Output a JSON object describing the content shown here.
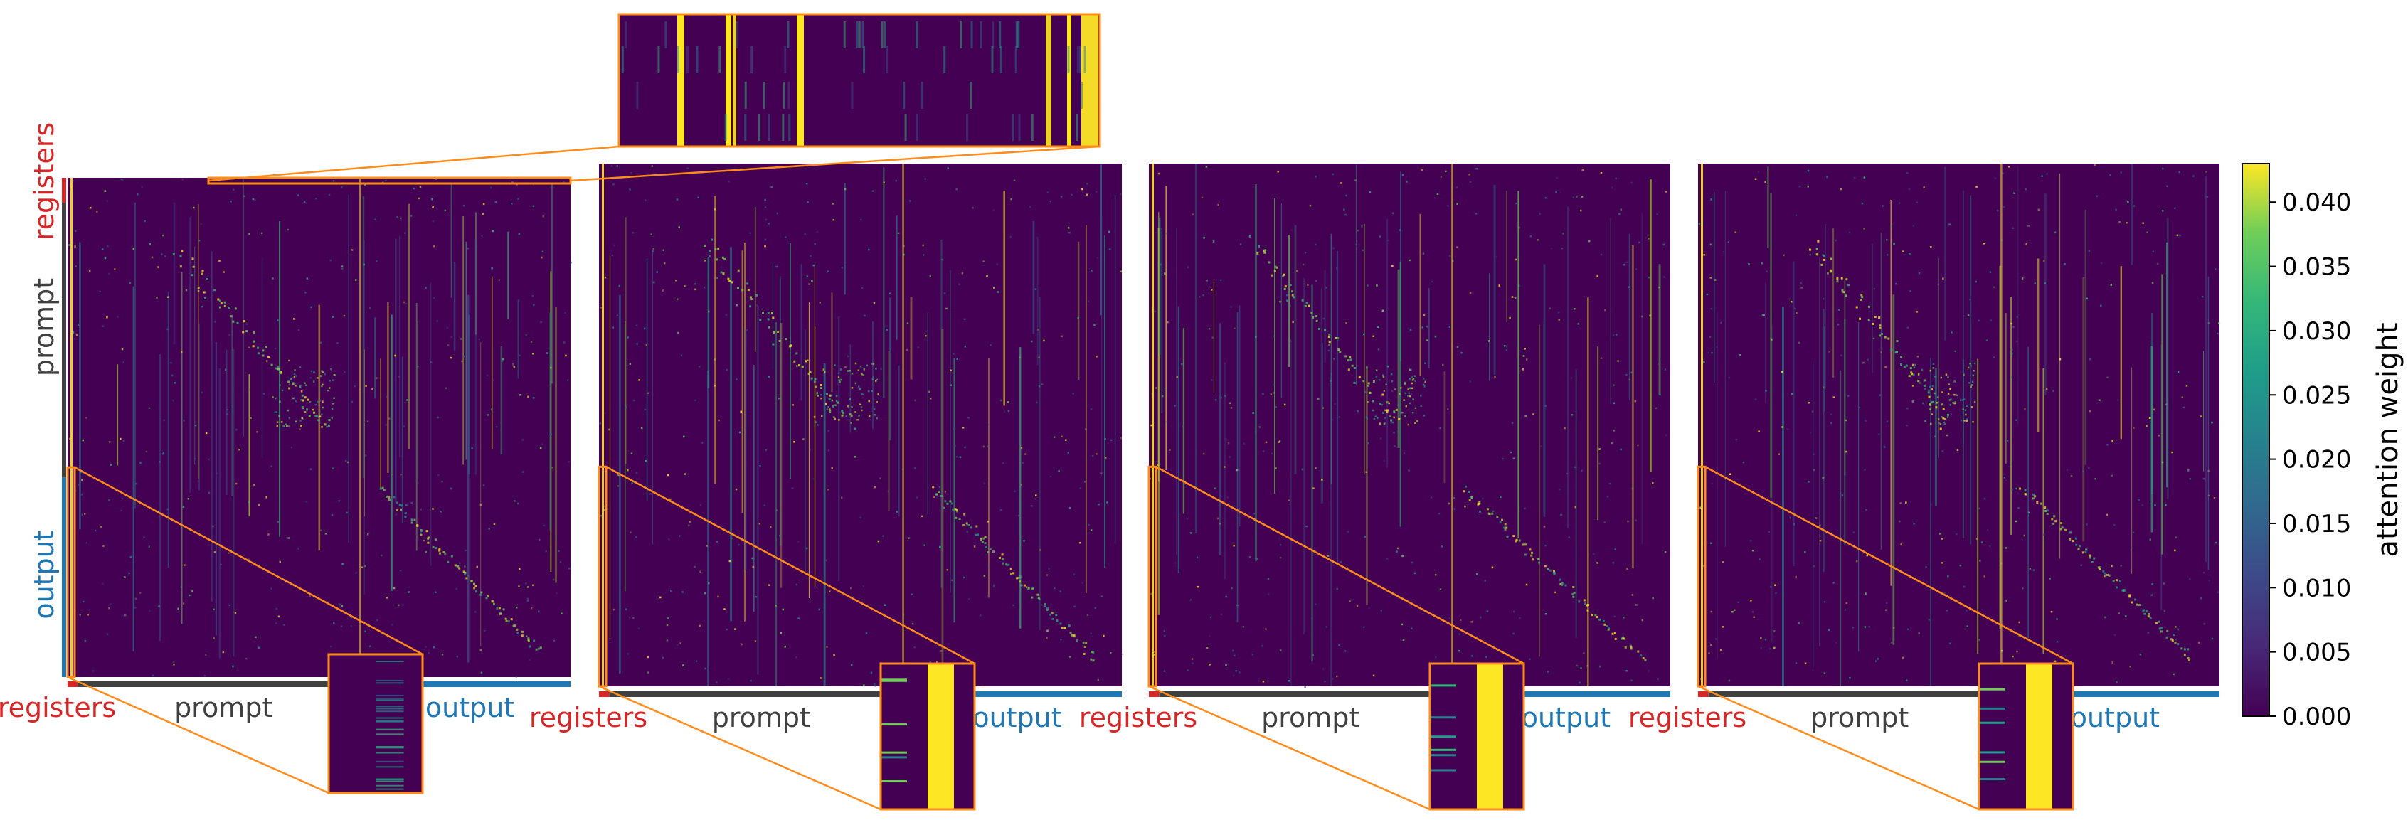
{
  "chart_data": {
    "type": "heatmap",
    "panel_count": 4,
    "axis_labels": {
      "registers": "registers",
      "prompt": "prompt",
      "output": "output"
    },
    "colorbar": {
      "label": "attention weight",
      "ticks": [
        "0.000",
        "0.005",
        "0.010",
        "0.015",
        "0.020",
        "0.025",
        "0.030",
        "0.035",
        "0.040"
      ],
      "tick_values": [
        0.0,
        0.005,
        0.01,
        0.015,
        0.02,
        0.025,
        0.03,
        0.035,
        0.04
      ],
      "vmin": 0.0,
      "vmax": 0.043,
      "colormap": "viridis"
    },
    "colors": {
      "registers": "#d62728",
      "prompt": "#404040",
      "output": "#1f77b4",
      "zoom_box": "#ff8c1a",
      "background_cell": "#440154",
      "bright_cell": "#fde725"
    }
  }
}
